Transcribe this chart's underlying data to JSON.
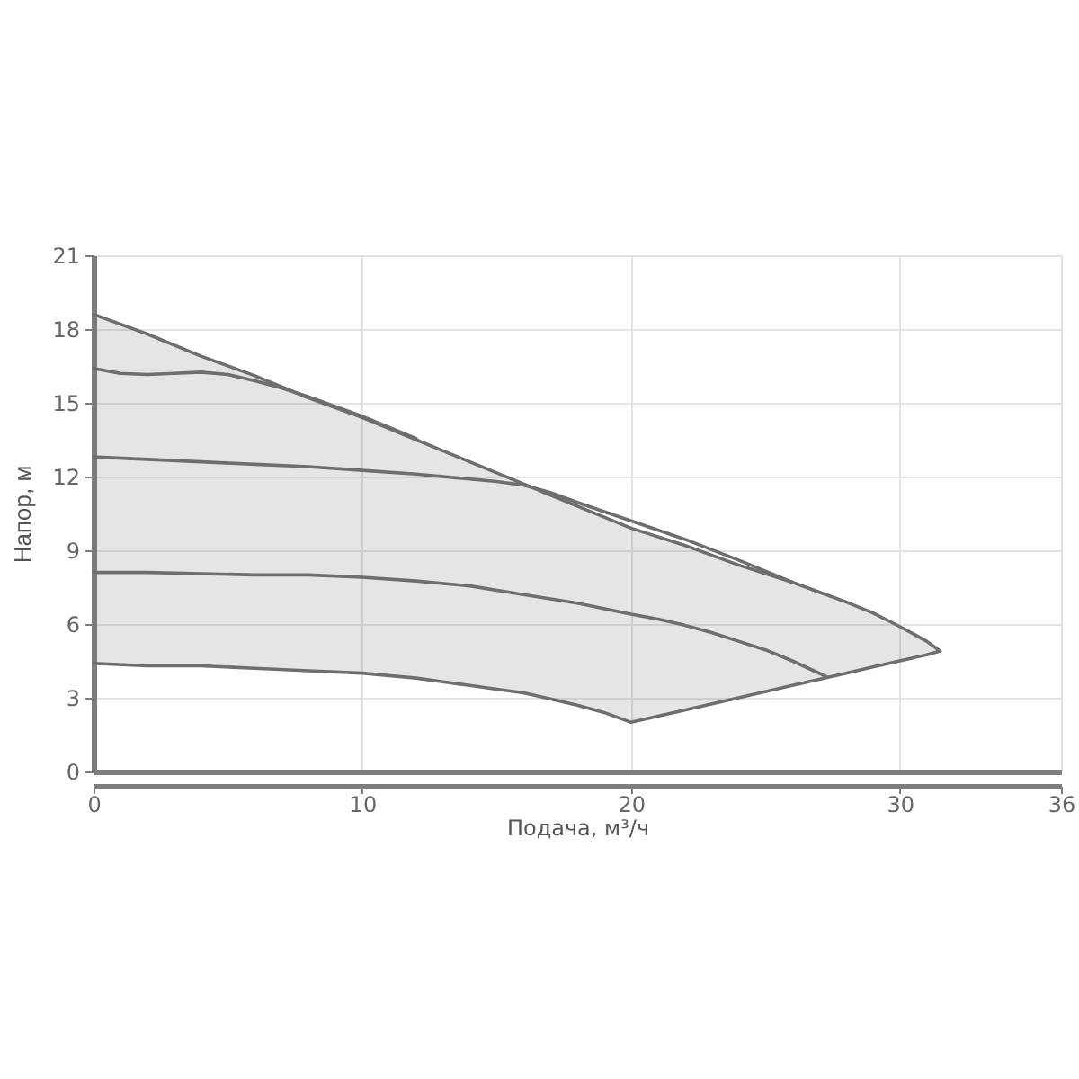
{
  "chart_data": {
    "type": "line",
    "xlabel": "Подача, м³/ч",
    "ylabel": "Напор, м",
    "xlim": [
      0,
      36
    ],
    "ylim": [
      0,
      21
    ],
    "xticks": [
      0,
      10,
      20,
      30,
      36
    ],
    "yticks": [
      0,
      3,
      6,
      9,
      12,
      15,
      18,
      21
    ],
    "grid": true,
    "series": [
      {
        "color": "#6e6e6e",
        "x": [
          0,
          2,
          4,
          6,
          8,
          10,
          12,
          13,
          14,
          15,
          16,
          17,
          18,
          19,
          20,
          22,
          24,
          26,
          27,
          28,
          29,
          30,
          31,
          31.5
        ],
        "values": [
          18.6,
          17.8,
          16.9,
          16.1,
          15.2,
          14.4,
          13.5,
          13.05,
          12.6,
          12.15,
          11.7,
          11.25,
          10.8,
          10.35,
          9.9,
          9.2,
          8.4,
          7.7,
          7.3,
          6.9,
          6.45,
          5.9,
          5.3,
          4.9
        ],
        "upper": [
          18.6,
          17.8,
          16.9,
          16.1,
          15.2,
          14.4,
          13.5,
          13.05,
          12.6,
          12.15,
          11.7,
          11.25,
          10.8,
          10.35,
          9.9,
          9.2,
          8.4,
          7.7,
          7.3,
          6.9,
          6.45,
          5.9,
          5.3,
          4.9
        ],
        "lower": [
          4.4,
          4.3,
          4.3,
          4.2,
          4.1,
          4.0,
          3.8,
          3.65,
          3.5,
          3.35,
          3.2,
          2.95,
          2.7,
          2.4,
          2.0,
          2.5,
          3.0,
          3.5,
          3.75,
          4.0,
          4.25,
          4.5,
          4.75,
          4.9
        ]
      },
      {
        "color": "#6e6e6e",
        "x": [
          0,
          1,
          2,
          3,
          4,
          5,
          6,
          7,
          8,
          10,
          12
        ],
        "values": [
          16.4,
          16.2,
          16.15,
          16.2,
          16.25,
          16.15,
          15.9,
          15.6,
          15.25,
          14.45,
          13.55
        ]
      },
      {
        "color": "#6e6e6e",
        "x": [
          0,
          2,
          4,
          6,
          8,
          10,
          12,
          14,
          15,
          16,
          17,
          18,
          20,
          22,
          24,
          26
        ],
        "values": [
          12.8,
          12.7,
          12.6,
          12.5,
          12.4,
          12.25,
          12.1,
          11.9,
          11.8,
          11.65,
          11.35,
          10.95,
          10.2,
          9.45,
          8.6,
          7.7
        ]
      },
      {
        "color": "#6e6e6e",
        "x": [
          0,
          2,
          4,
          6,
          8,
          10,
          12,
          14,
          16,
          18,
          20,
          21,
          22,
          23,
          24,
          25,
          26,
          27.3
        ],
        "values": [
          8.1,
          8.1,
          8.05,
          8.0,
          8.0,
          7.9,
          7.75,
          7.55,
          7.2,
          6.85,
          6.4,
          6.2,
          5.95,
          5.65,
          5.3,
          4.95,
          4.5,
          3.85
        ]
      },
      {
        "color": "#6e6e6e",
        "x": [
          0,
          2,
          4,
          6,
          8,
          10,
          12,
          13,
          14,
          15,
          16,
          17,
          18,
          19,
          20,
          22,
          24,
          26,
          27,
          28,
          29,
          30,
          31,
          31.5
        ],
        "values": [
          4.4,
          4.3,
          4.3,
          4.2,
          4.1,
          4.0,
          3.8,
          3.65,
          3.5,
          3.35,
          3.2,
          2.95,
          2.7,
          2.4,
          2.0,
          2.5,
          3.0,
          3.5,
          3.75,
          4.0,
          4.25,
          4.5,
          4.75,
          4.9
        ]
      }
    ]
  }
}
